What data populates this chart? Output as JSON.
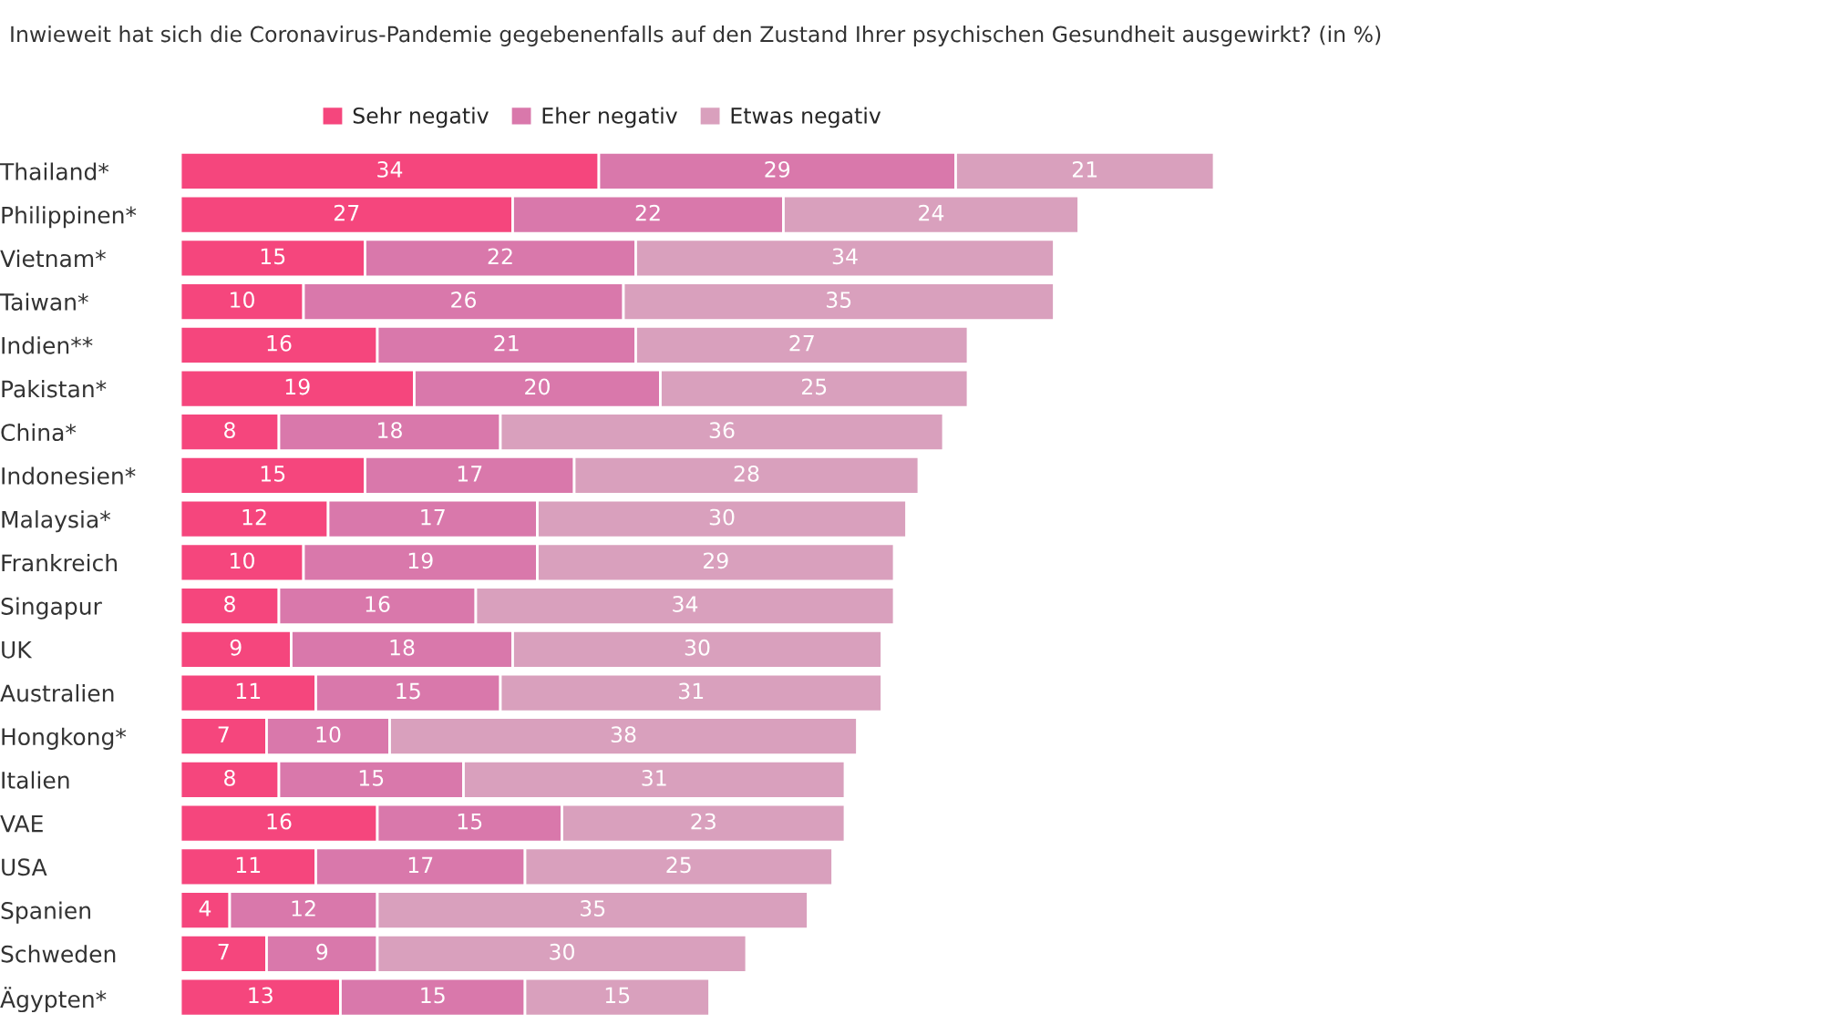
{
  "chart_data": {
    "type": "bar",
    "orientation": "horizontal",
    "stacked": true,
    "data_labels": true,
    "legend": "top",
    "grid": false,
    "tick_labels": "y",
    "subtitle": "Inwieweit hat sich die Coronavirus-Pandemie gegebenenfalls auf den Zustand Ihrer psychischen Gesundheit ausgewirkt? (in %)",
    "categories": [
      "Thailand*",
      "Philippinen*",
      "Vietnam*",
      "Taiwan*",
      "Indien**",
      "Pakistan*",
      "China*",
      "Indonesien*",
      "Malaysia*",
      "Frankreich",
      "Singapur",
      "UK",
      "Australien",
      "Hongkong*",
      "Italien",
      "VAE",
      "USA",
      "Spanien",
      "Schweden",
      "Ägypten*"
    ],
    "series": [
      {
        "name": "Sehr negativ",
        "color": "#f5467d",
        "values": [
          34,
          27,
          15,
          10,
          16,
          19,
          8,
          15,
          12,
          10,
          8,
          9,
          11,
          7,
          8,
          16,
          11,
          4,
          7,
          13
        ]
      },
      {
        "name": "Eher negativ",
        "color": "#d978ab",
        "values": [
          29,
          22,
          22,
          26,
          21,
          20,
          18,
          17,
          17,
          19,
          16,
          18,
          15,
          10,
          15,
          15,
          17,
          12,
          9,
          15
        ]
      },
      {
        "name": "Etwas negativ",
        "color": "#d9a0bd",
        "values": [
          21,
          24,
          34,
          35,
          27,
          25,
          36,
          28,
          30,
          29,
          34,
          30,
          31,
          38,
          31,
          23,
          25,
          35,
          30,
          15
        ]
      }
    ]
  }
}
